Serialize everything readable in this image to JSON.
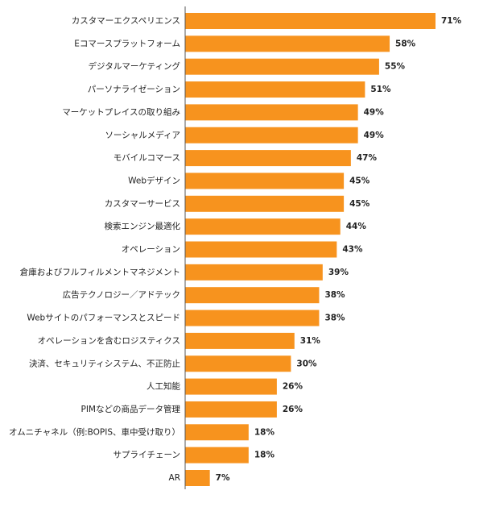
{
  "chart_data": {
    "type": "bar",
    "orientation": "horizontal",
    "categories": [
      "カスタマーエクスペリエンス",
      "Eコマースプラットフォーム",
      "デジタルマーケティング",
      "パーソナライゼーション",
      "マーケットプレイスの取り組み",
      "ソーシャルメディア",
      "モバイルコマース",
      "Webデザイン",
      "カスタマーサービス",
      "検索エンジン最適化",
      "オペレーション",
      "倉庫およびフルフィルメントマネジメント",
      "広告テクノロジー／アドテック",
      "Webサイトのパフォーマンスとスピード",
      "オペレーションを含むロジスティクス",
      "決済、セキュリティシステム、不正防止",
      "人工知能",
      "PIMなどの商品データ管理",
      "オムニチャネル（例:BOPIS、車中受け取り）",
      "サプライチェーン",
      "AR"
    ],
    "values": [
      71,
      58,
      55,
      51,
      49,
      49,
      47,
      45,
      45,
      44,
      43,
      39,
      38,
      38,
      31,
      30,
      26,
      26,
      18,
      18,
      7
    ],
    "value_labels": [
      "71%",
      "58%",
      "55%",
      "51%",
      "49%",
      "49%",
      "47%",
      "45%",
      "45%",
      "44%",
      "43%",
      "39%",
      "38%",
      "38%",
      "31%",
      "30%",
      "26%",
      "26%",
      "18%",
      "18%",
      "7%"
    ],
    "xlim": [
      0,
      100
    ],
    "grid": false,
    "legend": "none",
    "bar_color": "#F7931E",
    "axis_color": "#555555"
  }
}
